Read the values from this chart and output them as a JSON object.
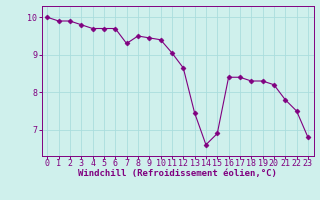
{
  "x": [
    0,
    1,
    2,
    3,
    4,
    5,
    6,
    7,
    8,
    9,
    10,
    11,
    12,
    13,
    14,
    15,
    16,
    17,
    18,
    19,
    20,
    21,
    22,
    23
  ],
  "y": [
    10.0,
    9.9,
    9.9,
    9.8,
    9.7,
    9.7,
    9.7,
    9.3,
    9.5,
    9.45,
    9.4,
    9.05,
    8.65,
    7.45,
    6.6,
    6.9,
    8.4,
    8.4,
    8.3,
    8.3,
    8.2,
    7.8,
    7.5,
    6.8
  ],
  "line_color": "#800080",
  "marker": "D",
  "marker_size": 2.5,
  "bg_color": "#cff0ec",
  "grid_color": "#aadddd",
  "xlabel": "Windchill (Refroidissement éolien,°C)",
  "xlabel_color": "#800080",
  "tick_color": "#800080",
  "ylim": [
    6.3,
    10.3
  ],
  "xlim": [
    -0.5,
    23.5
  ],
  "yticks": [
    7,
    8,
    9,
    10
  ],
  "xticks": [
    0,
    1,
    2,
    3,
    4,
    5,
    6,
    7,
    8,
    9,
    10,
    11,
    12,
    13,
    14,
    15,
    16,
    17,
    18,
    19,
    20,
    21,
    22,
    23
  ],
  "xlabel_fontsize": 6.5,
  "tick_fontsize": 6.0
}
